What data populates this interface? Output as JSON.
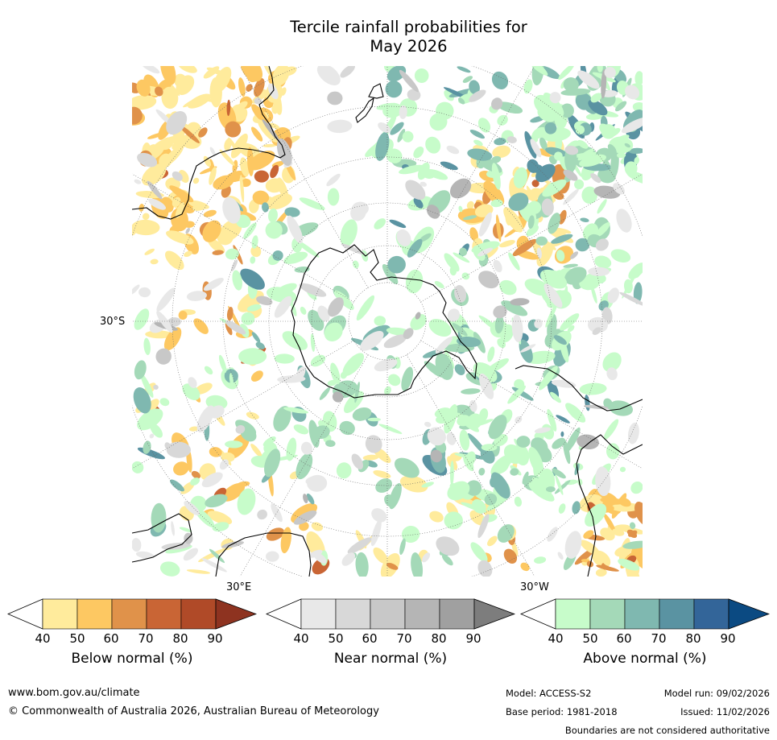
{
  "title": {
    "line1": "Tercile rainfall probabilities for",
    "line2": "May 2026"
  },
  "map": {
    "projection": "south-polar-stereographic",
    "axis_labels": {
      "left_lat": "30°S",
      "bottom_left_lon": "30°E",
      "bottom_right_lon": "30°W"
    },
    "colors": {
      "land_outline": "#000000",
      "graticule": "#666666",
      "ocean": "#ffffff"
    }
  },
  "colorbars": [
    {
      "name": "below",
      "label": "Below normal (%)",
      "ticks": [
        "40",
        "50",
        "60",
        "70",
        "80",
        "90"
      ],
      "colors": [
        "#ffffff",
        "#ffeb9c",
        "#fdc862",
        "#e0924a",
        "#c96535",
        "#b04a28",
        "#8e3320"
      ]
    },
    {
      "name": "near",
      "label": "Near normal (%)",
      "ticks": [
        "40",
        "50",
        "60",
        "70",
        "80",
        "90"
      ],
      "colors": [
        "#ffffff",
        "#e8e8e8",
        "#d8d8d8",
        "#c8c8c8",
        "#b5b5b5",
        "#a0a0a0",
        "#7d7d7d"
      ]
    },
    {
      "name": "above",
      "label": "Above normal (%)",
      "ticks": [
        "40",
        "50",
        "60",
        "70",
        "80",
        "90"
      ],
      "colors": [
        "#ffffff",
        "#c7fcca",
        "#a4d9b8",
        "#7fb8b0",
        "#5a93a2",
        "#336599",
        "#0b4a82"
      ]
    }
  ],
  "footer": {
    "website": "www.bom.gov.au/climate",
    "copyright": "© Commonwealth of Australia 2026, Australian Bureau of Meteorology",
    "model": "Model: ACCESS-S2",
    "model_run": "Model run: 09/02/2026",
    "base_period": "Base period: 1981-2018",
    "issued": "Issued: 11/02/2026",
    "disclaimer": "Boundaries are not considered authoritative"
  }
}
